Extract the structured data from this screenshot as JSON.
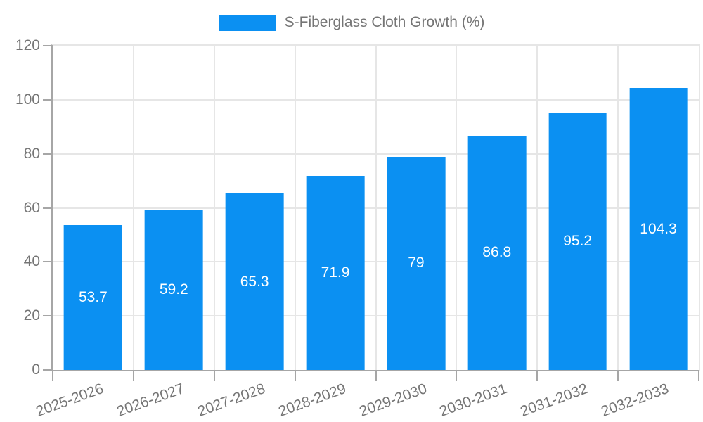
{
  "legend": {
    "label": "S-Fiberglass Cloth Growth (%)"
  },
  "chart_data": {
    "type": "bar",
    "title": "S-Fiberglass Cloth Growth (%)",
    "categories": [
      "2025-2026",
      "2026-2027",
      "2027-2028",
      "2028-2029",
      "2029-2030",
      "2030-2031",
      "2031-2032",
      "2032-2033"
    ],
    "values": [
      53.7,
      59.2,
      65.3,
      71.9,
      79,
      86.8,
      95.2,
      104.3
    ],
    "value_labels": [
      "53.7",
      "59.2",
      "65.3",
      "71.9",
      "79",
      "86.8",
      "95.2",
      "104.3"
    ],
    "xlabel": "",
    "ylabel": "",
    "ylim": [
      0,
      120
    ],
    "yticks": [
      0,
      20,
      40,
      60,
      80,
      100,
      120
    ],
    "grid": true,
    "legend_position": "top",
    "x_label_rotation_deg": -20,
    "bar_color": "#0B90F2",
    "value_label_color": "#ffffff",
    "grid_color": "#e6e6e6",
    "axis_color": "#a6a6a6",
    "tick_text_color": "#757575",
    "background_color": "#ffffff"
  }
}
